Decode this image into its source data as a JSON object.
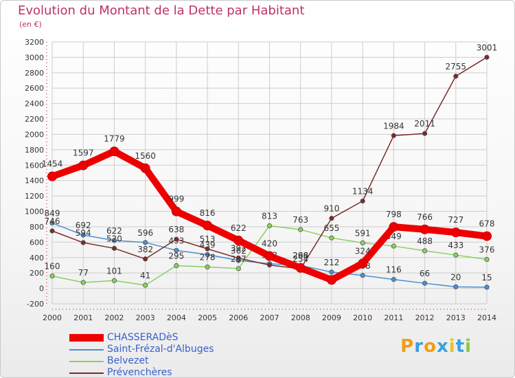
{
  "header": {
    "title": "Evolution du Montant de la Dette par Habitant",
    "subtitle": "(en €)"
  },
  "brand": {
    "letters": [
      "P",
      "r",
      "o",
      "x",
      "i",
      "t",
      "i"
    ],
    "colors": [
      "#f39c12",
      "#3aa0e0",
      "#f39c12",
      "#3aa0e0",
      "#e8c22a",
      "#3aa0e0",
      "#8cc63f"
    ]
  },
  "colors": {
    "title": "#c0306a",
    "grid": "#cccccc",
    "axis_text": "#333333",
    "label_text": "#333333",
    "legend_text": "#3a5fcd"
  },
  "chart_data": {
    "type": "line",
    "title": "Evolution du Montant de la Dette par Habitant",
    "ylabel": "(en €)",
    "x": [
      2000,
      2001,
      2002,
      2003,
      2004,
      2005,
      2006,
      2007,
      2008,
      2009,
      2010,
      2011,
      2012,
      2013,
      2014
    ],
    "ylim": [
      -200,
      3200
    ],
    "yticks": [
      -200,
      0,
      200,
      400,
      600,
      800,
      1000,
      1200,
      1400,
      1600,
      1800,
      2000,
      2200,
      2400,
      2600,
      2800,
      3000,
      3200
    ],
    "grid": true,
    "legend_position": "bottom-left",
    "series": [
      {
        "name": "CHASSERADèS",
        "color": "#ee0000",
        "width": "thick",
        "values": [
          1454,
          1597,
          1779,
          1560,
          999,
          816,
          622,
          420,
          266,
          110,
          324,
          798,
          766,
          727,
          678
        ],
        "labels": [
          "1454",
          "1597",
          "1779",
          "1560",
          "999",
          "816",
          "622",
          "420",
          "266",
          "",
          "324",
          "798",
          "766",
          "727",
          "678"
        ]
      },
      {
        "name": "Saint-Frézal-d'Albuges",
        "color": "#4a8fd0",
        "width": "thin",
        "values": [
          849,
          692,
          622,
          596,
          493,
          439,
          362,
          320,
          298,
          212,
          168,
          116,
          66,
          20,
          15
        ],
        "labels": [
          "849",
          "692",
          "622",
          "596",
          "493",
          "439",
          "362",
          "",
          "298",
          "212",
          "168",
          "116",
          "66",
          "20",
          "15"
        ]
      },
      {
        "name": "Belvezet",
        "color": "#88d060",
        "width": "thin",
        "values": [
          160,
          77,
          101,
          41,
          295,
          278,
          257,
          813,
          763,
          655,
          591,
          549,
          488,
          433,
          376
        ],
        "labels": [
          "160",
          "77",
          "101",
          "41",
          "295",
          "278",
          "257",
          "813",
          "763",
          "655",
          "591",
          "549",
          "488",
          "433",
          "376"
        ]
      },
      {
        "name": "Prévenchères",
        "color": "#7a2a2a",
        "width": "thin",
        "values": [
          746,
          594,
          520,
          382,
          638,
          513,
          392,
          303,
          254,
          910,
          1134,
          1984,
          2011,
          2755,
          3001
        ],
        "labels": [
          "746",
          "594",
          "520",
          "382",
          "638",
          "513",
          "392",
          "303",
          "254",
          "910",
          "1134",
          "1984",
          "2011",
          "2755",
          "3001"
        ]
      }
    ]
  }
}
